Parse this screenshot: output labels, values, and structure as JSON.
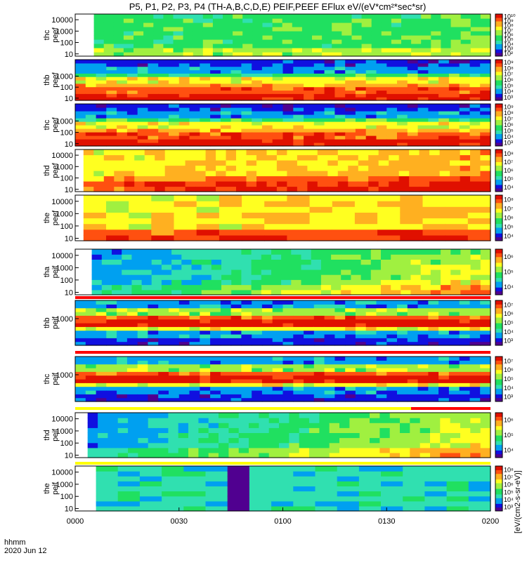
{
  "title": "P5, P1, P2, P3, P4 (TH-A,B,C,D,E) PEIF,PEEF EFlux eV/(eV*cm²*sec*sr)",
  "time_axis": {
    "label_line1": "hhmm",
    "label_line2": "2020 Jun 12",
    "ticks": [
      "0000",
      "0030",
      "0100",
      "0130",
      "0200"
    ]
  },
  "colorbar_label": "[eV/(cm2-s-sr-eV)]",
  "colors": {
    "scale": [
      "#500090",
      "#1010e0",
      "#00a0f0",
      "#30e0b0",
      "#20e060",
      "#a0f040",
      "#ffff20",
      "#ffb020",
      "#ff5010",
      "#e01000"
    ],
    "flag_red": "#ff0000",
    "flag_yellow": "#ffff00"
  },
  "chart_data": [
    {
      "type": "heatmap",
      "probe": "thc",
      "instrument": "peef",
      "ylabel_line1": "thc",
      "ylabel_line2": "peef",
      "yticks": [
        "10",
        "100",
        "1000",
        "10000"
      ],
      "colorbar_ticks": [
        "10²",
        "10³",
        "10⁴",
        "10⁵",
        "10⁶",
        "10⁷",
        "10⁸",
        "10⁹",
        "10¹⁰"
      ],
      "description": "bright green spectrum, band starting near 0003"
    },
    {
      "type": "heatmap",
      "probe": "thb",
      "instrument": "peef",
      "ylabel_line1": "thb",
      "ylabel_line2": "peef",
      "yticks": [
        "10",
        "100",
        "1000"
      ],
      "colorbar_ticks": [
        "10³",
        "10⁴",
        "10⁵",
        "10⁶",
        "10⁷",
        "10⁸",
        "10⁹"
      ],
      "description": "red/orange core at low energies, blue at top"
    },
    {
      "type": "heatmap",
      "probe": "thc",
      "instrument": "peef",
      "ylabel_line1": "thc",
      "ylabel_line2": "peef",
      "yticks": [
        "10",
        "100",
        "1000"
      ],
      "colorbar_ticks": [
        "10³",
        "10⁴",
        "10⁵",
        "10⁶",
        "10⁷",
        "10⁸",
        "10⁹"
      ],
      "description": "red/orange core, blue and black at top"
    },
    {
      "type": "heatmap",
      "probe": "thd",
      "instrument": "peef",
      "ylabel_line1": "thd",
      "ylabel_line2": "peef",
      "yticks": [
        "10",
        "100",
        "1000",
        "10000"
      ],
      "colorbar_ticks": [
        "10⁴",
        "10⁵",
        "10⁶",
        "10⁷",
        "10⁸"
      ],
      "description": "yellow/orange throughout"
    },
    {
      "type": "heatmap",
      "probe": "the",
      "instrument": "peef",
      "ylabel_line1": "the",
      "ylabel_line2": "peef",
      "yticks": [
        "10",
        "100",
        "1000",
        "10000"
      ],
      "colorbar_ticks": [
        "10⁴",
        "10⁵",
        "10⁶",
        "10⁷",
        "10⁸"
      ],
      "description": "blocky coarse cadence segments, yellow/orange"
    },
    {
      "type": "heatmap",
      "probe": "tha",
      "instrument": "peif",
      "ylabel_line1": "tha",
      "ylabel_line2": "peif",
      "yticks": [
        "10",
        "100",
        "1000",
        "10000"
      ],
      "colorbar_ticks": [
        "10⁴",
        "10⁵",
        "10⁶"
      ],
      "description": "blue early, yellow/orange later"
    },
    {
      "type": "heatmap",
      "probe": "thb",
      "instrument": "peif",
      "ylabel_line1": "thb",
      "ylabel_line2": "peif",
      "yticks": [
        "1000"
      ],
      "colorbar_ticks": [
        "10³",
        "10⁴",
        "10⁵",
        "10⁶",
        "10⁷"
      ],
      "description": "red band mid energy, blue at low/high"
    },
    {
      "type": "heatmap",
      "probe": "thc",
      "instrument": "peif",
      "ylabel_line1": "thc",
      "ylabel_line2": "peif",
      "yticks": [
        "1000"
      ],
      "colorbar_ticks": [
        "10³",
        "10⁴",
        "10⁵",
        "10⁶",
        "10⁷"
      ],
      "description": "red band mid energy, blue at low/high"
    },
    {
      "type": "heatmap",
      "probe": "thd",
      "instrument": "peif",
      "ylabel_line1": "thd",
      "ylabel_line2": "peif",
      "yticks": [
        "10",
        "100",
        "1000",
        "10000"
      ],
      "colorbar_ticks": [
        "10⁴",
        "10⁵",
        "10⁶"
      ],
      "description": "blue early, yellow/orange later"
    },
    {
      "type": "heatmap",
      "probe": "the",
      "instrument": "peif",
      "ylabel_line1": "the",
      "ylabel_line2": "peif",
      "yticks": [
        "10",
        "100",
        "1000",
        "10000"
      ],
      "colorbar_ticks": [
        "10³",
        "10⁴",
        "10⁵",
        "10⁶",
        "10⁷",
        "10⁸"
      ],
      "description": "cyan/green blocks, dark gap near 0045"
    }
  ]
}
